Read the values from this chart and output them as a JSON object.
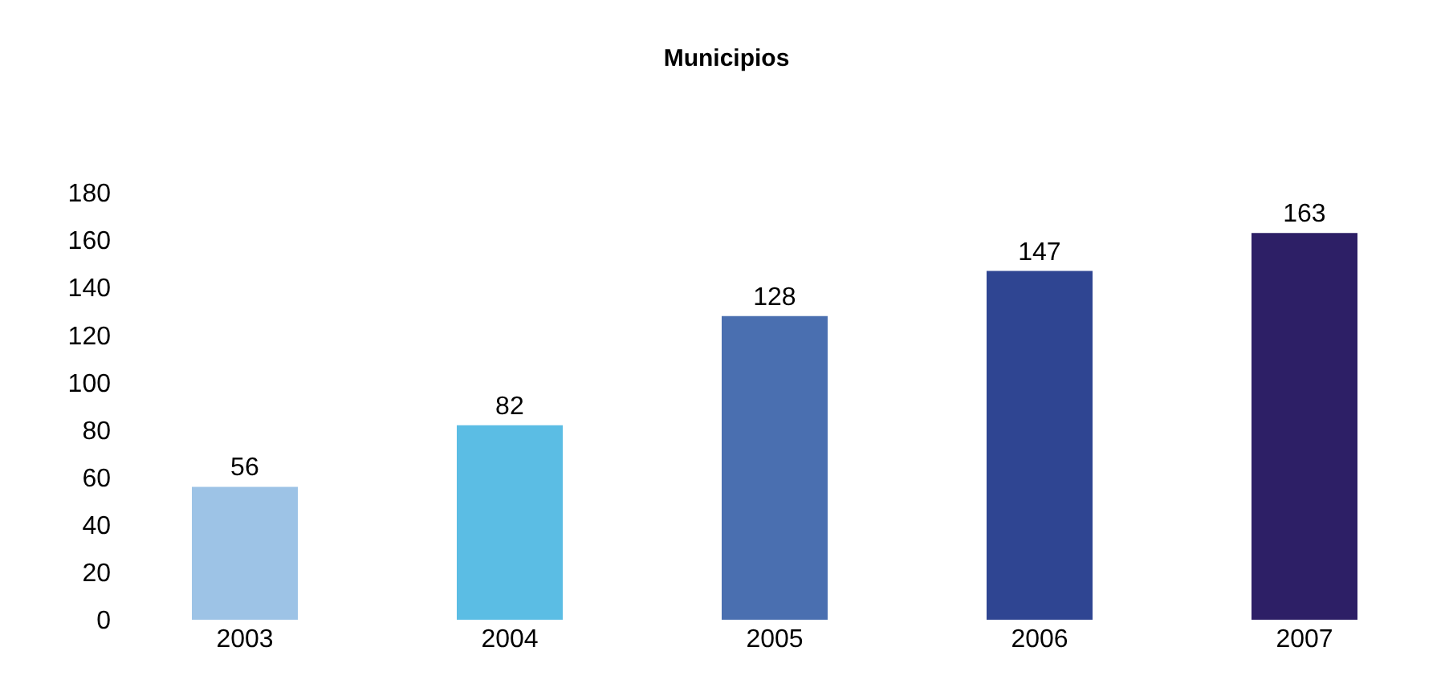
{
  "chart_data": {
    "type": "bar",
    "title": "Municipios",
    "categories": [
      "2003",
      "2004",
      "2005",
      "2006",
      "2007"
    ],
    "values": [
      56,
      82,
      128,
      147,
      163
    ],
    "colors": [
      "#9dc3e6",
      "#5bbde4",
      "#4a6fb0",
      "#2f4592",
      "#2d1f66"
    ],
    "ylim": [
      0,
      180
    ],
    "yticks": [
      0,
      20,
      40,
      60,
      80,
      100,
      120,
      140,
      160,
      180
    ],
    "data_labels": true
  }
}
